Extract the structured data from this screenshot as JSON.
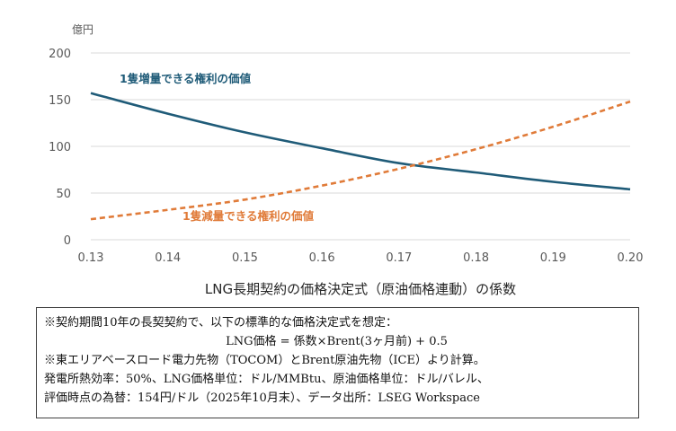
{
  "chart_data": {
    "type": "line",
    "unit_label": "億円",
    "xlabel": "LNG長期契約の価格決定式（原油価格連動）の係数",
    "x": [
      0.13,
      0.14,
      0.15,
      0.16,
      0.17,
      0.18,
      0.19,
      0.2
    ],
    "x_tick_labels": [
      "0.13",
      "0.14",
      "0.15",
      "0.16",
      "0.17",
      "0.18",
      "0.19",
      "0.20"
    ],
    "y_ticks": [
      0,
      50,
      100,
      150,
      200
    ],
    "ylim": [
      0,
      200
    ],
    "xlim": [
      0.13,
      0.2
    ],
    "grid": "horizontal",
    "series": [
      {
        "name": "1隻増量できる権利の価値",
        "color": "#1f5b78",
        "style": "solid",
        "values": [
          157,
          135,
          115,
          98,
          82,
          72,
          62,
          54
        ]
      },
      {
        "name": "1隻減量できる権利の価値",
        "color": "#e07b39",
        "style": "dashed",
        "values": [
          22,
          32,
          43,
          58,
          76,
          97,
          121,
          148
        ]
      }
    ]
  },
  "notes": [
    "※契約期間10年の長契契約で、以下の標準的な価格決定式を想定：",
    "LNG価格 = 係数×Brent(3ヶ月前) + 0.5",
    "※東エリアベースロード電力先物（TOCOM）とBrent原油先物（ICE）より計算。",
    "発電所熱効率：50%、LNG価格単位：ドル/MMBtu、原油価格単位：ドル/バレル、",
    "評価時点の為替：154円/ドル（2025年10月末）、データ出所：LSEG Workspace"
  ]
}
